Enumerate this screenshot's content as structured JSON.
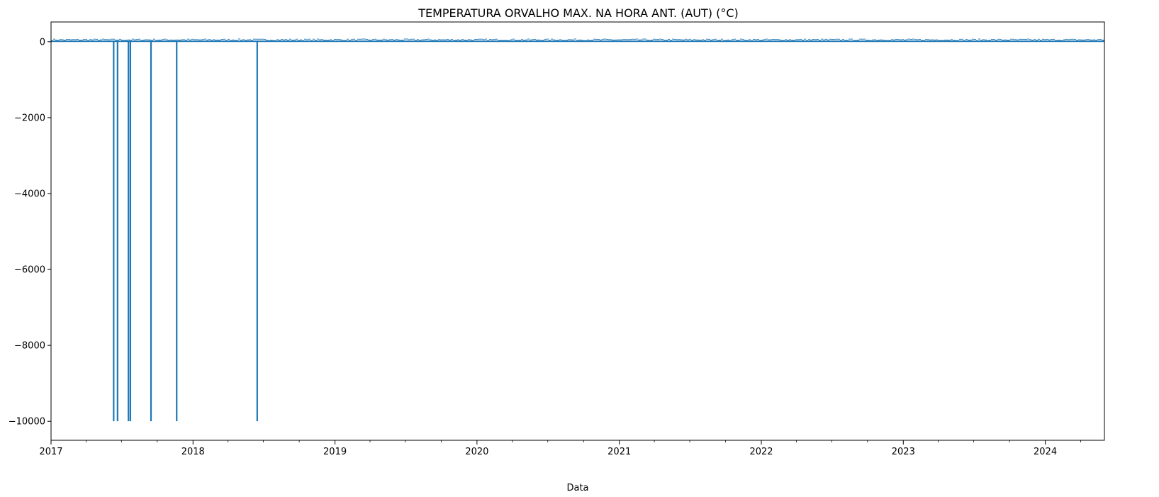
{
  "chart_data": {
    "type": "line",
    "title": "TEMPERATURA ORVALHO MAX. NA HORA ANT. (AUT) (°C)",
    "xlabel": "Data",
    "ylabel": "",
    "x_range": [
      "2017-01-01",
      "2024-06-01"
    ],
    "ylim": [
      -10500,
      520
    ],
    "x_ticks": [
      "2017",
      "2018",
      "2019",
      "2020",
      "2021",
      "2022",
      "2023",
      "2024"
    ],
    "y_ticks": [
      0,
      -2000,
      -4000,
      -6000,
      -8000,
      -10000
    ],
    "grid": false,
    "color": "#1f77b4",
    "series": [
      {
        "baseline_band": [
          0,
          30
        ],
        "values_note": "",
        "dropouts": [
          {
            "date": "2017-06-11",
            "value": -9999
          },
          {
            "date": "2017-06-21",
            "value": -9999
          },
          {
            "date": "2017-07-19",
            "value": -9999
          },
          {
            "date": "2017-07-24",
            "value": -9999
          },
          {
            "date": "2017-09-15",
            "value": -9999
          },
          {
            "date": "2017-11-20",
            "value": -9999
          },
          {
            "date": "2018-06-15",
            "value": -9999
          }
        ]
      }
    ]
  }
}
